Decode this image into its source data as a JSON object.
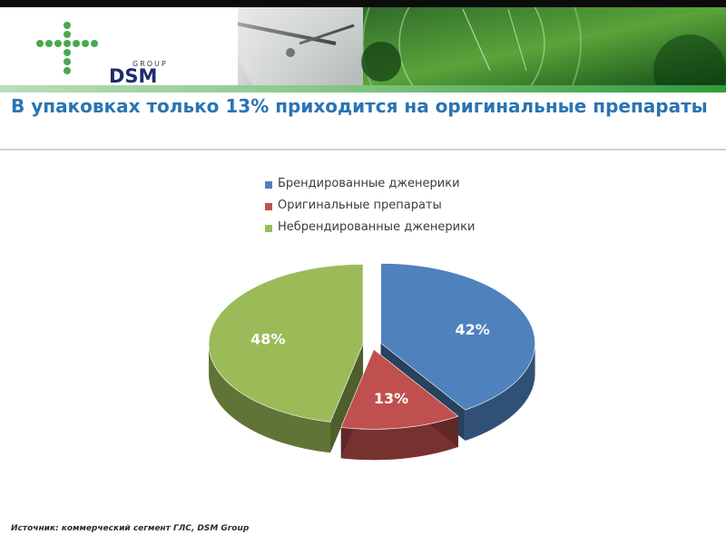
{
  "header": {
    "logo_group_text": "GROUP",
    "logo_brand_text": "DSM"
  },
  "slide": {
    "title": "В упаковках только 13% приходится на оригинальные препараты",
    "source": "Источник: коммерческий сегмент ГЛС, DSM Group"
  },
  "colors": {
    "series_blue": "#4f81bd",
    "series_red": "#c0504d",
    "series_green": "#9bbb59",
    "title": "#2a74b4"
  },
  "chart_data": {
    "type": "pie",
    "title": "",
    "categories": [
      "Брендированные дженерики",
      "Оригинальные препараты",
      "Небрендированные дженерики"
    ],
    "values": [
      42,
      13,
      48
    ],
    "labels": [
      "42%",
      "13%",
      "48%"
    ],
    "legend_position": "top",
    "style": "3d-exploded"
  }
}
